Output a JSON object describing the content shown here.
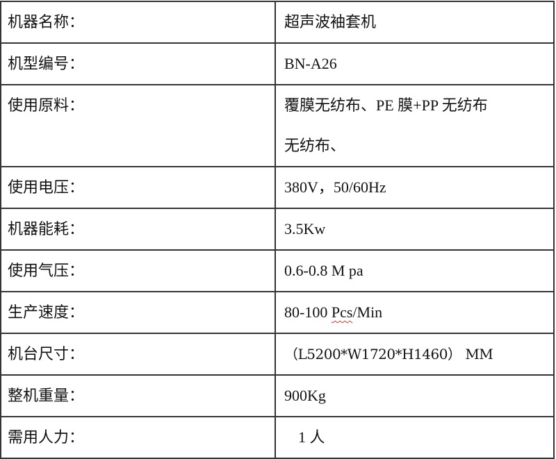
{
  "rows": [
    {
      "label": "机器名称：",
      "value": "超声波袖套机"
    },
    {
      "label": "机型编号：",
      "value": "BN-A26"
    },
    {
      "label": "使用原料：",
      "value_lines": [
        "覆膜无纺布、PE 膜+PP 无纺布",
        "无纺布、"
      ]
    },
    {
      "label": "使用电压：",
      "value": "380V，50/60Hz"
    },
    {
      "label": "机器能耗：",
      "value": "3.5Kw"
    },
    {
      "label": "使用气压：",
      "value": "0.6-0.8 M pa"
    },
    {
      "label": "生产速度：",
      "value_prefix": "80-100 ",
      "value_flagged": "Pcs",
      "value_suffix": "/Min"
    },
    {
      "label": "机台尺寸：",
      "value": "（L5200*W1720*H1460） MM"
    },
    {
      "label": "整机重量：",
      "value": "900Kg"
    },
    {
      "label": "需用人力：",
      "value": "1 人"
    }
  ]
}
